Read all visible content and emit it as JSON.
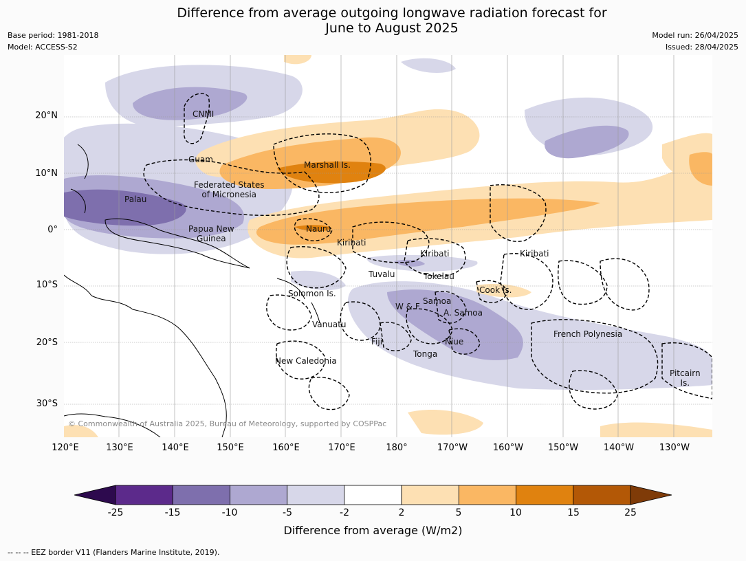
{
  "title": {
    "line1": "Difference from average outgoing longwave radiation forecast for",
    "line2": "June to August 2025"
  },
  "meta": {
    "base_period": "Base period: 1981-2018",
    "model": "Model: ACCESS-S2",
    "model_run": "Model run: 26/04/2025",
    "issued": "Issued: 28/04/2025"
  },
  "map": {
    "latitude_labels": [
      "20°N",
      "10°N",
      "0°",
      "10°S",
      "20°S",
      "30°S"
    ],
    "longitude_labels": [
      "120°E",
      "130°E",
      "140°E",
      "150°E",
      "160°E",
      "170°E",
      "180°",
      "170°W",
      "160°W",
      "150°W",
      "140°W",
      "130°W"
    ],
    "places": {
      "cnmi": "CNMI",
      "guam": "Guam",
      "marshall": "Marshall Is.",
      "fsm_line1": "Federated States",
      "fsm_line2": "of Micronesia",
      "palau": "Palau",
      "png_line1": "Papua New",
      "png_line2": "Guinea",
      "nauru": "Nauru",
      "kiribati_west": "Kiribati",
      "kiribati_central": "Kiribati",
      "kiribati_east": "Kiribati",
      "tuvalu": "Tuvalu",
      "tokelau": "Tokelau",
      "solomon": "Solomon Is.",
      "cook": "Cook Is.",
      "samoa": "Samoa",
      "wf": "W & F",
      "amsamoa": "A. Samoa",
      "vanuatu": "Vanuatu",
      "fiji": "Fiji",
      "niue": "Niue",
      "tonga": "Tonga",
      "french_polynesia": "French Polynesia",
      "new_caledonia": "New Caledonia",
      "pitcairn_line1": "Pitcairn",
      "pitcairn_line2": "Is."
    },
    "copyright": "© Commonwealth of Australia 2025, Bureau of Meteorology, supported by COSPPac"
  },
  "colorbar": {
    "tick_labels": [
      "-25",
      "-15",
      "-10",
      "-5",
      "-2",
      "2",
      "5",
      "10",
      "15",
      "25"
    ],
    "colors": [
      "#2d0a4e",
      "#5c2a8b",
      "#7e6fad",
      "#aea8d1",
      "#d7d7e9",
      "#ffffff",
      "#fde0b3",
      "#fab763",
      "#e0820f",
      "#b35806",
      "#7f3b08"
    ],
    "label": "Difference from average (W/m2)"
  },
  "footnote": "--  --  -- EEZ border V11 (Flanders Marine Institute, 2019)."
}
